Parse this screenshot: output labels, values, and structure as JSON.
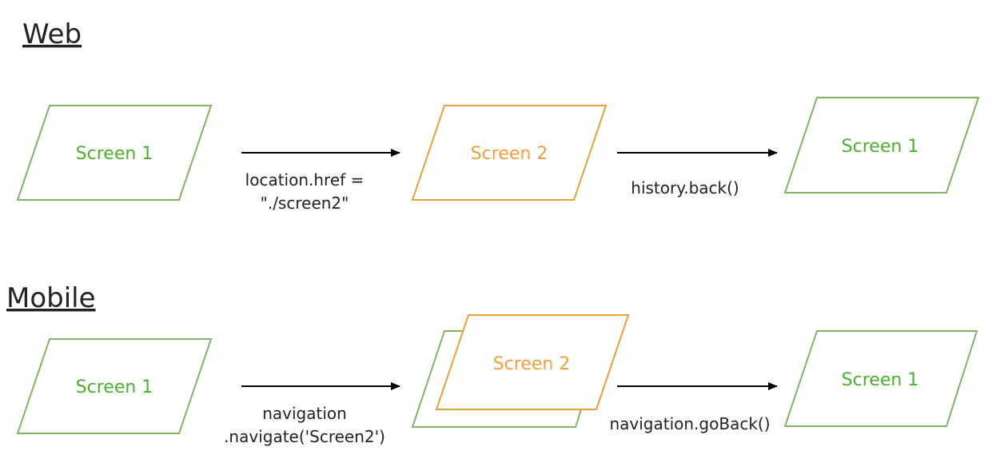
{
  "colors": {
    "screen1": "#82b366",
    "screen1_text": "#4caf2f",
    "screen2": "#e8a23a",
    "screen2_text": "#f0a040",
    "arrow": "#000000",
    "text": "#222222"
  },
  "web": {
    "title": "Web",
    "node1": "Screen 1",
    "node2": "Screen 2",
    "node3": "Screen 1",
    "edge1_line1": "location.href =",
    "edge1_line2": "\"./screen2\"",
    "edge2": "history.back()"
  },
  "mobile": {
    "title": "Mobile",
    "node1": "Screen 1",
    "node2": "Screen 2",
    "node3": "Screen 1",
    "edge1_line1": "navigation",
    "edge1_line2": ".navigate('Screen2')",
    "edge2": "navigation.goBack()"
  }
}
